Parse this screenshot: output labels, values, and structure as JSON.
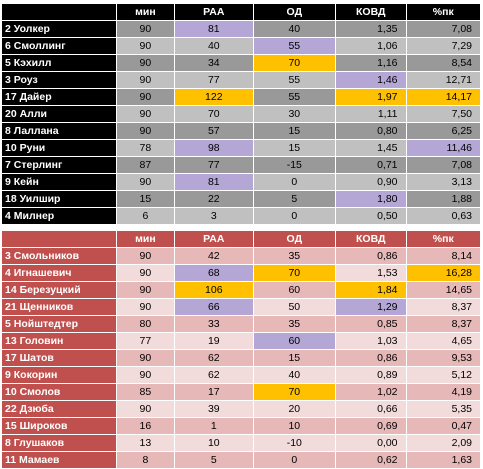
{
  "table1": {
    "headers": [
      "",
      "мин",
      "РАА",
      "ОД",
      "КОВД",
      "%пк"
    ],
    "rows": [
      [
        "2 Уолкер",
        "90",
        "81",
        "40",
        "1,35",
        "7,08"
      ],
      [
        "6 Смоллинг",
        "90",
        "40",
        "55",
        "1,06",
        "7,29"
      ],
      [
        "5 Кэхилл",
        "90",
        "34",
        "70",
        "1,16",
        "8,54"
      ],
      [
        "3 Роуз",
        "90",
        "77",
        "55",
        "1,46",
        "12,71"
      ],
      [
        "17 Дайер",
        "90",
        "122",
        "55",
        "1,97",
        "14,17"
      ],
      [
        "20 Алли",
        "90",
        "70",
        "30",
        "1,11",
        "7,50"
      ],
      [
        "8 Лаллана",
        "90",
        "57",
        "15",
        "0,80",
        "6,25"
      ],
      [
        "10 Руни",
        "78",
        "98",
        "15",
        "1,45",
        "11,46"
      ],
      [
        "7 Стерлинг",
        "87",
        "77",
        "-15",
        "0,71",
        "7,08"
      ],
      [
        "9 Кейн",
        "90",
        "81",
        "0",
        "0,90",
        "3,13"
      ],
      [
        "18 Уилшир",
        "15",
        "22",
        "5",
        "1,80",
        "1,88"
      ],
      [
        "4 Милнер",
        "6",
        "3",
        "0",
        "0,50",
        "0,63"
      ]
    ],
    "colors": {
      "header_bg": "#000000",
      "name_bg": "#000000",
      "row_odd": "#999999",
      "row_even": "#c0c0c0",
      "highlight_purple": "#b4a7d6",
      "highlight_orange": "#ffc000"
    },
    "highlights": [
      [
        0,
        2,
        "purple"
      ],
      [
        1,
        3,
        "purple"
      ],
      [
        2,
        3,
        "orange"
      ],
      [
        3,
        4,
        "purple"
      ],
      [
        4,
        2,
        "orange"
      ],
      [
        4,
        4,
        "orange"
      ],
      [
        4,
        5,
        "orange"
      ],
      [
        7,
        2,
        "purple"
      ],
      [
        7,
        5,
        "purple"
      ],
      [
        9,
        2,
        "purple"
      ],
      [
        10,
        4,
        "purple"
      ]
    ]
  },
  "table2": {
    "headers": [
      "",
      "мин",
      "РАА",
      "ОД",
      "КОВД",
      "%пк"
    ],
    "rows": [
      [
        "3 Смольников",
        "90",
        "42",
        "35",
        "0,86",
        "8,14"
      ],
      [
        "4 Игнашевич",
        "90",
        "68",
        "70",
        "1,53",
        "16,28"
      ],
      [
        "14 Березуцкий",
        "90",
        "106",
        "60",
        "1,84",
        "14,65"
      ],
      [
        "21 Щенников",
        "90",
        "66",
        "50",
        "1,29",
        "8,37"
      ],
      [
        "5 Нойштедтер",
        "80",
        "33",
        "35",
        "0,85",
        "8,37"
      ],
      [
        "13 Головин",
        "77",
        "19",
        "60",
        "1,03",
        "4,65"
      ],
      [
        "17 Шатов",
        "90",
        "62",
        "15",
        "0,86",
        "9,53"
      ],
      [
        "9 Кокорин",
        "90",
        "62",
        "40",
        "0,89",
        "5,12"
      ],
      [
        "10 Смолов",
        "85",
        "17",
        "70",
        "1,02",
        "4,19"
      ],
      [
        "22 Дзюба",
        "90",
        "39",
        "20",
        "0,66",
        "5,35"
      ],
      [
        "15 Широков",
        "16",
        "1",
        "10",
        "0,69",
        "0,47"
      ],
      [
        "8 Глушаков",
        "13",
        "10",
        "-10",
        "0,00",
        "2,09"
      ],
      [
        "11 Мамаев",
        "8",
        "5",
        "0",
        "0,62",
        "1,63"
      ]
    ],
    "colors": {
      "header_bg": "#c0504d",
      "name_bg": "#c0504d",
      "row_odd": "#e6b8b7",
      "row_even": "#f2dcdb",
      "highlight_purple": "#b4a7d6",
      "highlight_orange": "#ffc000"
    },
    "highlights": [
      [
        1,
        2,
        "purple"
      ],
      [
        1,
        3,
        "orange"
      ],
      [
        1,
        5,
        "orange"
      ],
      [
        2,
        2,
        "orange"
      ],
      [
        2,
        4,
        "orange"
      ],
      [
        3,
        2,
        "purple"
      ],
      [
        3,
        4,
        "purple"
      ],
      [
        5,
        3,
        "purple"
      ],
      [
        8,
        3,
        "orange"
      ]
    ]
  }
}
